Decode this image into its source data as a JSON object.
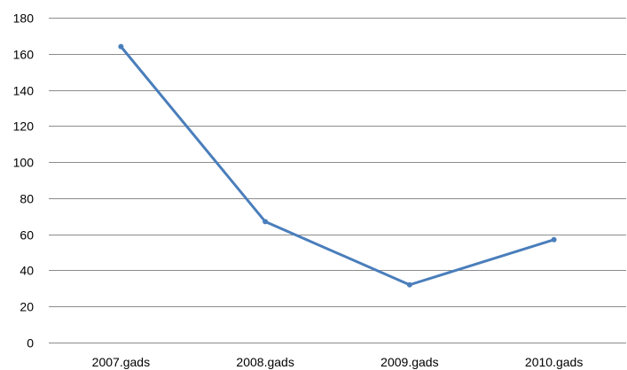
{
  "chart_data": {
    "type": "line",
    "title": "",
    "xlabel": "",
    "ylabel": "",
    "categories": [
      "2007.gads",
      "2008.gads",
      "2009.gads",
      "2010.gads"
    ],
    "series": [
      {
        "values": [
          164,
          67,
          32,
          57
        ],
        "color": "#4a7ebb"
      }
    ],
    "ylim": [
      0,
      180
    ],
    "yticks": [
      0,
      20,
      40,
      60,
      80,
      100,
      120,
      140,
      160,
      180
    ],
    "grid": true,
    "legend": "none",
    "colors": {
      "grid": "#8c8c8c",
      "line": "#4a7ebb"
    }
  }
}
